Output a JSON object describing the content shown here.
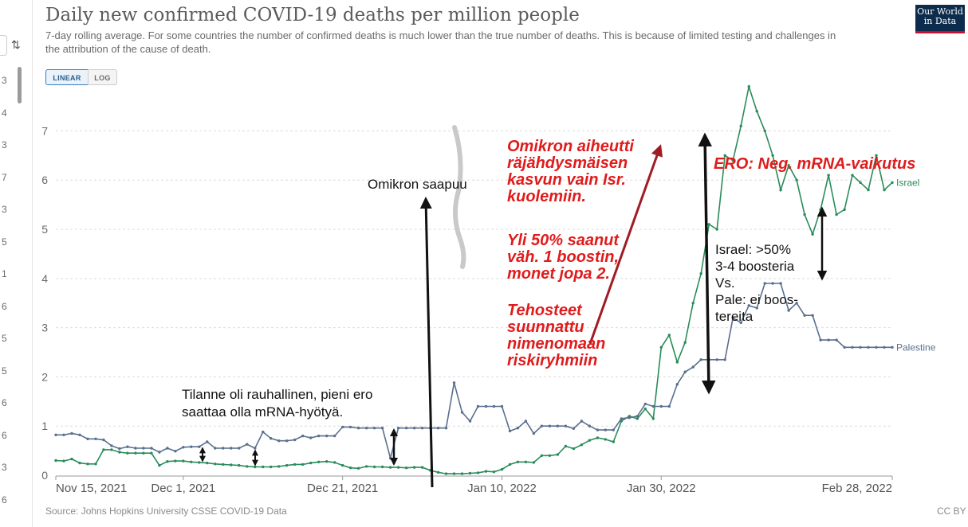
{
  "title": "Daily new confirmed COVID-19 deaths per million people",
  "subtitle": "7-day rolling average. For some countries the number of confirmed deaths is much lower than the true number of deaths. This is because of limited testing and challenges in the attribution of the cause of death.",
  "logo": {
    "line1": "Our World",
    "line2": "in Data"
  },
  "scale_toggle": {
    "linear": "LINEAR",
    "log": "LOG",
    "selected": "LINEAR"
  },
  "source": "Source: Johns Hopkins University CSSE COVID-19 Data",
  "license": "CC BY",
  "left_strip_numbers": [
    "3",
    "4",
    "3",
    "7",
    "3",
    "5",
    "1",
    "6",
    "5",
    "5",
    "6",
    "6",
    "3",
    "6"
  ],
  "colors": {
    "israel": "#2a8c5a",
    "palestine": "#5a6f8f",
    "annotation_red": "#e01b1b",
    "arrow_red": "#a01c24"
  },
  "annotations": {
    "omikron_arrives": "Omikron saapuu",
    "calm": [
      "Tilanne oli rauhallinen, pieni ero",
      "saattaa olla mRNA-hyötyä."
    ],
    "omikron_explosion": [
      "Omikron aiheutti",
      "räjähdysmäisen",
      "kasvun vain Isr.",
      "kuolemiin."
    ],
    "booster_share": [
      "Yli 50% saanut",
      "väh. 1 boostin,",
      "monet jopa 2."
    ],
    "boosters_targeted": [
      "Tehosteet",
      "suunnattu",
      "nimenomaan",
      "riskiryhmiin"
    ],
    "difference": "ERO: Neg. mRNA-vaikutus",
    "israel_vs_pale": [
      "Israel: >50%",
      "3-4 boosteria",
      "Vs.",
      "Pale: ei boos-",
      "tereita"
    ]
  },
  "chart_data": {
    "type": "line",
    "title": "Daily new confirmed COVID-19 deaths per million people",
    "x_tick_labels": [
      "Nov 15, 2021",
      "Dec 1, 2021",
      "Dec 21, 2021",
      "Jan 10, 2022",
      "Jan 30, 2022",
      "Feb 28, 2022"
    ],
    "x_tick_dates": [
      "2021-11-15",
      "2021-12-01",
      "2021-12-21",
      "2022-01-10",
      "2022-01-30",
      "2022-02-28"
    ],
    "x_range": [
      "2021-11-15",
      "2022-02-28"
    ],
    "y_ticks": [
      0,
      1,
      2,
      3,
      4,
      5,
      6,
      7
    ],
    "ylim": [
      0,
      7.8
    ],
    "grid": "horizontal dashed",
    "series": [
      {
        "name": "Israel",
        "color": "#2a8c5a",
        "x": [
          "2021-11-15",
          "2021-11-16",
          "2021-11-17",
          "2021-11-18",
          "2021-11-19",
          "2021-11-20",
          "2021-11-21",
          "2021-11-22",
          "2021-11-23",
          "2021-11-24",
          "2021-11-25",
          "2021-11-26",
          "2021-11-27",
          "2021-11-28",
          "2021-11-29",
          "2021-11-30",
          "2021-12-01",
          "2021-12-02",
          "2021-12-03",
          "2021-12-04",
          "2021-12-05",
          "2021-12-06",
          "2021-12-07",
          "2021-12-08",
          "2021-12-09",
          "2021-12-10",
          "2021-12-11",
          "2021-12-12",
          "2021-12-13",
          "2021-12-14",
          "2021-12-15",
          "2021-12-16",
          "2021-12-17",
          "2021-12-18",
          "2021-12-19",
          "2021-12-20",
          "2021-12-21",
          "2021-12-22",
          "2021-12-23",
          "2021-12-24",
          "2021-12-25",
          "2021-12-26",
          "2021-12-27",
          "2021-12-28",
          "2021-12-29",
          "2021-12-30",
          "2021-12-31",
          "2022-01-01",
          "2022-01-02",
          "2022-01-03",
          "2022-01-04",
          "2022-01-05",
          "2022-01-06",
          "2022-01-07",
          "2022-01-08",
          "2022-01-09",
          "2022-01-10",
          "2022-01-11",
          "2022-01-12",
          "2022-01-13",
          "2022-01-14",
          "2022-01-15",
          "2022-01-16",
          "2022-01-17",
          "2022-01-18",
          "2022-01-19",
          "2022-01-20",
          "2022-01-21",
          "2022-01-22",
          "2022-01-23",
          "2022-01-24",
          "2022-01-25",
          "2022-01-26",
          "2022-01-27",
          "2022-01-28",
          "2022-01-29",
          "2022-01-30",
          "2022-01-31",
          "2022-02-01",
          "2022-02-02",
          "2022-02-03",
          "2022-02-04",
          "2022-02-05",
          "2022-02-06",
          "2022-02-07",
          "2022-02-08",
          "2022-02-09",
          "2022-02-10",
          "2022-02-11",
          "2022-02-12",
          "2022-02-13",
          "2022-02-14",
          "2022-02-15",
          "2022-02-16",
          "2022-02-17",
          "2022-02-18",
          "2022-02-19",
          "2022-02-20",
          "2022-02-21",
          "2022-02-22",
          "2022-02-23",
          "2022-02-24",
          "2022-02-25",
          "2022-02-26",
          "2022-02-27",
          "2022-02-28"
        ],
        "values": [
          0.3,
          0.29,
          0.33,
          0.25,
          0.23,
          0.23,
          0.52,
          0.52,
          0.47,
          0.45,
          0.45,
          0.45,
          0.45,
          0.2,
          0.28,
          0.29,
          0.29,
          0.27,
          0.26,
          0.25,
          0.23,
          0.22,
          0.21,
          0.2,
          0.18,
          0.17,
          0.17,
          0.17,
          0.18,
          0.2,
          0.22,
          0.22,
          0.25,
          0.27,
          0.28,
          0.26,
          0.2,
          0.15,
          0.14,
          0.18,
          0.17,
          0.17,
          0.16,
          0.16,
          0.15,
          0.16,
          0.16,
          0.1,
          0.06,
          0.03,
          0.03,
          0.03,
          0.04,
          0.05,
          0.08,
          0.07,
          0.12,
          0.22,
          0.27,
          0.27,
          0.26,
          0.4,
          0.4,
          0.42,
          0.59,
          0.54,
          0.62,
          0.71,
          0.76,
          0.73,
          0.68,
          1.1,
          1.2,
          1.15,
          1.35,
          1.15,
          2.6,
          2.85,
          2.3,
          2.7,
          3.5,
          4.1,
          5.1,
          5.0,
          6.5,
          6.4,
          7.1,
          7.9,
          7.4,
          7.0,
          6.5,
          5.8,
          6.3,
          6.0,
          5.3,
          4.9,
          5.4,
          6.1,
          5.3,
          5.4,
          6.1,
          5.95,
          5.8,
          6.5,
          5.8,
          5.95
        ]
      },
      {
        "name": "Palestine",
        "color": "#5a6f8f",
        "x": [
          "2021-11-15",
          "2021-11-16",
          "2021-11-17",
          "2021-11-18",
          "2021-11-19",
          "2021-11-20",
          "2021-11-21",
          "2021-11-22",
          "2021-11-23",
          "2021-11-24",
          "2021-11-25",
          "2021-11-26",
          "2021-11-27",
          "2021-11-28",
          "2021-11-29",
          "2021-11-30",
          "2021-12-01",
          "2021-12-02",
          "2021-12-03",
          "2021-12-04",
          "2021-12-05",
          "2021-12-06",
          "2021-12-07",
          "2021-12-08",
          "2021-12-09",
          "2021-12-10",
          "2021-12-11",
          "2021-12-12",
          "2021-12-13",
          "2021-12-14",
          "2021-12-15",
          "2021-12-16",
          "2021-12-17",
          "2021-12-18",
          "2021-12-19",
          "2021-12-20",
          "2021-12-21",
          "2021-12-22",
          "2021-12-23",
          "2021-12-24",
          "2021-12-25",
          "2021-12-26",
          "2021-12-27",
          "2021-12-28",
          "2021-12-29",
          "2021-12-30",
          "2021-12-31",
          "2022-01-01",
          "2022-01-02",
          "2022-01-03",
          "2022-01-04",
          "2022-01-05",
          "2022-01-06",
          "2022-01-07",
          "2022-01-08",
          "2022-01-09",
          "2022-01-10",
          "2022-01-11",
          "2022-01-12",
          "2022-01-13",
          "2022-01-14",
          "2022-01-15",
          "2022-01-16",
          "2022-01-17",
          "2022-01-18",
          "2022-01-19",
          "2022-01-20",
          "2022-01-21",
          "2022-01-22",
          "2022-01-23",
          "2022-01-24",
          "2022-01-25",
          "2022-01-26",
          "2022-01-27",
          "2022-01-28",
          "2022-01-29",
          "2022-01-30",
          "2022-01-31",
          "2022-02-01",
          "2022-02-02",
          "2022-02-03",
          "2022-02-04",
          "2022-02-05",
          "2022-02-06",
          "2022-02-07",
          "2022-02-08",
          "2022-02-09",
          "2022-02-10",
          "2022-02-11",
          "2022-02-12",
          "2022-02-13",
          "2022-02-14",
          "2022-02-15",
          "2022-02-16",
          "2022-02-17",
          "2022-02-18",
          "2022-02-19",
          "2022-02-20",
          "2022-02-21",
          "2022-02-22",
          "2022-02-23",
          "2022-02-24",
          "2022-02-25",
          "2022-02-26",
          "2022-02-27",
          "2022-02-28"
        ],
        "values": [
          0.82,
          0.82,
          0.85,
          0.82,
          0.74,
          0.74,
          0.72,
          0.6,
          0.54,
          0.58,
          0.55,
          0.55,
          0.55,
          0.47,
          0.55,
          0.49,
          0.57,
          0.58,
          0.58,
          0.68,
          0.55,
          0.55,
          0.55,
          0.55,
          0.63,
          0.55,
          0.88,
          0.75,
          0.7,
          0.7,
          0.72,
          0.8,
          0.76,
          0.8,
          0.8,
          0.8,
          0.98,
          0.98,
          0.96,
          0.96,
          0.96,
          0.96,
          0.35,
          0.96,
          0.96,
          0.96,
          0.96,
          0.96,
          0.96,
          0.96,
          1.88,
          1.28,
          1.1,
          1.4,
          1.4,
          1.4,
          1.4,
          0.9,
          0.96,
          1.1,
          0.85,
          1.0,
          1.0,
          1.0,
          1.0,
          0.95,
          1.1,
          1.0,
          0.92,
          0.92,
          0.92,
          1.15,
          1.17,
          1.2,
          1.45,
          1.4,
          1.4,
          1.4,
          1.85,
          2.1,
          2.2,
          2.35,
          2.35,
          2.35,
          2.35,
          3.2,
          3.1,
          3.45,
          3.4,
          3.9,
          3.9,
          3.9,
          3.35,
          3.5,
          3.25,
          3.25,
          2.75,
          2.75,
          2.75,
          2.6,
          2.6,
          2.6,
          2.6,
          2.6,
          2.6,
          2.6
        ]
      }
    ]
  }
}
